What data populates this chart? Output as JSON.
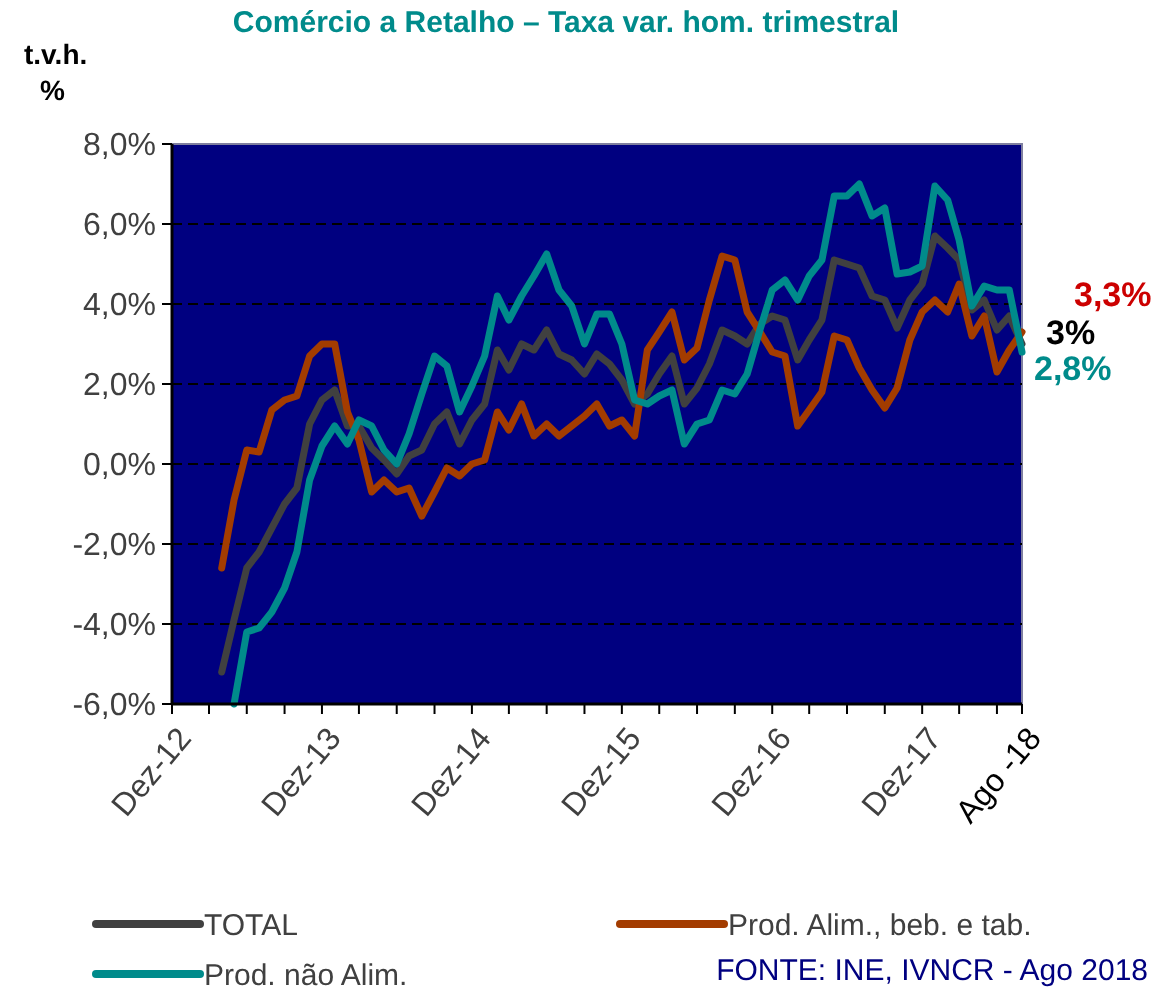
{
  "chart_data": {
    "type": "line",
    "title": "Comércio a Retalho – Taxa var. hom. trimestral",
    "ylabel": "t.v.h.\n%",
    "x": [
      "2013-04",
      "2013-05",
      "2013-06",
      "2013-07",
      "2013-08",
      "2013-09",
      "2013-10",
      "2013-11",
      "2013-12",
      "2014-01",
      "2014-02",
      "2014-03",
      "2014-04",
      "2014-05",
      "2014-06",
      "2014-07",
      "2014-08",
      "2014-09",
      "2014-10",
      "2014-11",
      "2014-12",
      "2015-01",
      "2015-02",
      "2015-03",
      "2015-04",
      "2015-05",
      "2015-06",
      "2015-07",
      "2015-08",
      "2015-09",
      "2015-10",
      "2015-11",
      "2015-12",
      "2016-01",
      "2016-02",
      "2016-03",
      "2016-04",
      "2016-05",
      "2016-06",
      "2016-07",
      "2016-08",
      "2016-09",
      "2016-10",
      "2016-11",
      "2016-12",
      "2017-01",
      "2017-02",
      "2017-03",
      "2017-04",
      "2017-05",
      "2017-06",
      "2017-07",
      "2017-08",
      "2017-09",
      "2017-10",
      "2017-11",
      "2017-12",
      "2018-01",
      "2018-02",
      "2018-03",
      "2018-04",
      "2018-05",
      "2018-06",
      "2018-07",
      "2018-08"
    ],
    "series": [
      {
        "name": "TOTAL",
        "color": "#404040",
        "values": [
          -5.2,
          -3.9,
          -2.6,
          -2.2,
          -1.6,
          -1.0,
          -0.6,
          1.0,
          1.6,
          1.85,
          0.95,
          0.95,
          0.4,
          0.1,
          -0.25,
          0.2,
          0.35,
          1.0,
          1.3,
          0.5,
          1.1,
          1.5,
          2.85,
          2.35,
          3.0,
          2.85,
          3.35,
          2.75,
          2.6,
          2.25,
          2.75,
          2.5,
          2.1,
          1.5,
          1.75,
          2.25,
          2.7,
          1.5,
          1.9,
          2.5,
          3.35,
          3.2,
          3.0,
          3.5,
          3.7,
          3.6,
          2.6,
          3.1,
          3.6,
          5.1,
          5.0,
          4.9,
          4.2,
          4.1,
          3.4,
          4.1,
          4.5,
          5.7,
          5.4,
          5.1,
          3.85,
          4.1,
          3.35,
          3.7,
          3.0
        ]
      },
      {
        "name": "Prod. Alim., beb. e tab.",
        "color": "#a33c00",
        "values": [
          -2.6,
          -0.9,
          0.35,
          0.3,
          1.35,
          1.6,
          1.7,
          2.7,
          3.0,
          3.0,
          1.3,
          0.6,
          -0.7,
          -0.4,
          -0.7,
          -0.6,
          -1.3,
          -0.7,
          -0.1,
          -0.3,
          0.0,
          0.1,
          1.3,
          0.85,
          1.5,
          0.7,
          1.0,
          0.7,
          0.95,
          1.2,
          1.5,
          0.95,
          1.1,
          0.7,
          2.85,
          3.3,
          3.8,
          2.6,
          2.9,
          4.1,
          5.2,
          5.1,
          3.8,
          3.3,
          2.8,
          2.7,
          0.95,
          1.35,
          1.8,
          3.2,
          3.1,
          2.4,
          1.85,
          1.4,
          1.9,
          3.1,
          3.8,
          4.1,
          3.8,
          4.5,
          3.2,
          3.7,
          2.3,
          2.85,
          3.3
        ]
      },
      {
        "name": "Prod. não Alim.",
        "color": "#008b8b",
        "values": [
          null,
          -6.0,
          -4.2,
          -4.1,
          -3.7,
          -3.1,
          -2.2,
          -0.4,
          0.45,
          0.95,
          0.5,
          1.1,
          0.95,
          0.35,
          0.0,
          0.75,
          1.75,
          2.7,
          2.45,
          1.3,
          1.95,
          2.7,
          4.2,
          3.6,
          4.2,
          4.7,
          5.25,
          4.35,
          3.95,
          3.0,
          3.75,
          3.75,
          3.0,
          1.6,
          1.5,
          1.7,
          1.85,
          0.5,
          1.0,
          1.1,
          1.85,
          1.75,
          2.25,
          3.35,
          4.35,
          4.6,
          4.1,
          4.7,
          5.1,
          6.7,
          6.7,
          7.0,
          6.2,
          6.4,
          4.75,
          4.8,
          4.95,
          6.95,
          6.6,
          5.6,
          3.95,
          4.45,
          4.35,
          4.35,
          2.8
        ]
      }
    ],
    "xlim": [
      "2012-12",
      "2018-08"
    ],
    "xticks": [
      {
        "value": "2012-12",
        "label": "Dez-12"
      },
      {
        "value": "2013-03",
        "label": null
      },
      {
        "value": "2013-06",
        "label": null
      },
      {
        "value": "2013-09",
        "label": null
      },
      {
        "value": "2013-12",
        "label": "Dez-13"
      },
      {
        "value": "2014-03",
        "label": null
      },
      {
        "value": "2014-06",
        "label": null
      },
      {
        "value": "2014-09",
        "label": null
      },
      {
        "value": "2014-12",
        "label": "Dez-14"
      },
      {
        "value": "2015-03",
        "label": null
      },
      {
        "value": "2015-06",
        "label": null
      },
      {
        "value": "2015-09",
        "label": null
      },
      {
        "value": "2015-12",
        "label": "Dez-15"
      },
      {
        "value": "2016-03",
        "label": null
      },
      {
        "value": "2016-06",
        "label": null
      },
      {
        "value": "2016-09",
        "label": null
      },
      {
        "value": "2016-12",
        "label": "Dez-16"
      },
      {
        "value": "2017-03",
        "label": null
      },
      {
        "value": "2017-06",
        "label": null
      },
      {
        "value": "2017-09",
        "label": null
      },
      {
        "value": "2017-12",
        "label": "Dez-17"
      },
      {
        "value": "2018-03",
        "label": null
      },
      {
        "value": "2018-06",
        "label": null
      },
      {
        "value": "2018-08",
        "label": "Ago -18"
      }
    ],
    "ylim": [
      -6,
      8
    ],
    "yticks": [
      {
        "value": -6,
        "label": "-6,0%"
      },
      {
        "value": -4,
        "label": "-4,0%"
      },
      {
        "value": -2,
        "label": "-2,0%"
      },
      {
        "value": 0,
        "label": "0,0%"
      },
      {
        "value": 2,
        "label": "2,0%"
      },
      {
        "value": 4,
        "label": "4,0%"
      },
      {
        "value": 6,
        "label": "6,0%"
      },
      {
        "value": 8,
        "label": "8,0%"
      }
    ],
    "grid": "y",
    "legend": "bottom",
    "marker": "none",
    "line_style": "solid",
    "annotations": [
      {
        "text": "3,3%",
        "x": "2018-08",
        "y": 3.3
      },
      {
        "text": "3%",
        "x": "2018-08",
        "y": 3.0
      },
      {
        "text": "2,8%",
        "x": "2018-08",
        "y": 2.8
      },
      "FONTE: INE, IVNCR - Ago 2018"
    ]
  }
}
